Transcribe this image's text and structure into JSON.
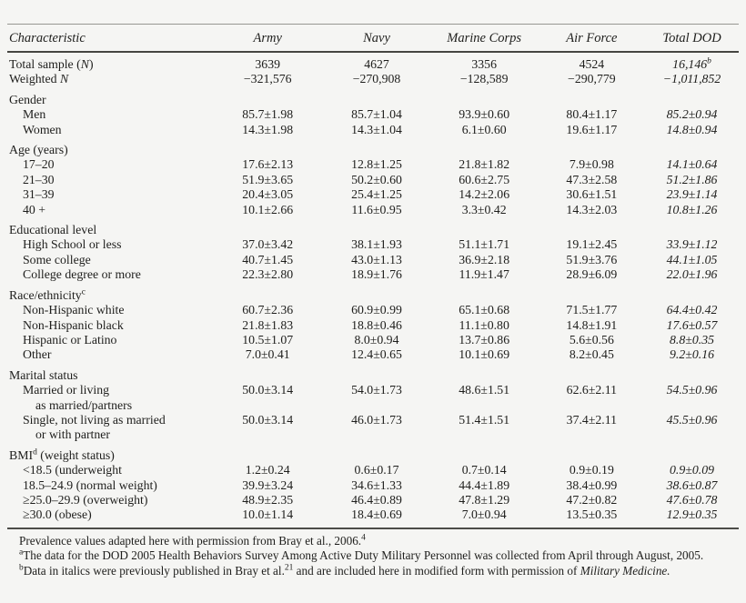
{
  "page": {
    "background": "#f5f5f3",
    "text_color": "#1e1e1c"
  },
  "table": {
    "columns": [
      {
        "key": "characteristic",
        "label": "Characteristic"
      },
      {
        "key": "army",
        "label": "Army"
      },
      {
        "key": "navy",
        "label": "Navy"
      },
      {
        "key": "marine-corps",
        "label": "Marine Corps"
      },
      {
        "key": "air-force",
        "label": "Air Force"
      },
      {
        "key": "total-dod",
        "label": "Total DOD"
      }
    ],
    "rows": [
      {
        "kind": "data",
        "indent": 0,
        "label_parts": [
          {
            "t": "Total sample ("
          },
          {
            "t": "N",
            "italic": true
          },
          {
            "t": ")"
          }
        ],
        "values": [
          "3639",
          "4627",
          "3356",
          "4524",
          "16,146"
        ],
        "last_value_sup": "b"
      },
      {
        "kind": "data",
        "indent": 0,
        "label_parts": [
          {
            "t": "Weighted "
          },
          {
            "t": "N",
            "italic": true
          }
        ],
        "values": [
          "−321,576",
          "−270,908",
          "−128,589",
          "−290,779",
          "−1,011,852"
        ]
      },
      {
        "kind": "section",
        "label_parts": [
          {
            "t": "Gender"
          }
        ]
      },
      {
        "kind": "data",
        "indent": 1,
        "label_parts": [
          {
            "t": "Men"
          }
        ],
        "values": [
          "85.7±1.98",
          "85.7±1.04",
          "93.9±0.60",
          "80.4±1.17",
          "85.2±0.94"
        ]
      },
      {
        "kind": "data",
        "indent": 1,
        "label_parts": [
          {
            "t": "Women"
          }
        ],
        "values": [
          "14.3±1.98",
          "14.3±1.04",
          "6.1±0.60",
          "19.6±1.17",
          "14.8±0.94"
        ]
      },
      {
        "kind": "section",
        "label_parts": [
          {
            "t": "Age (years)"
          }
        ]
      },
      {
        "kind": "data",
        "indent": 1,
        "label_parts": [
          {
            "t": "17–20"
          }
        ],
        "values": [
          "17.6±2.13",
          "12.8±1.25",
          "21.8±1.82",
          "7.9±0.98",
          "14.1±0.64"
        ]
      },
      {
        "kind": "data",
        "indent": 1,
        "label_parts": [
          {
            "t": "21–30"
          }
        ],
        "values": [
          "51.9±3.65",
          "50.2±0.60",
          "60.6±2.75",
          "47.3±2.58",
          "51.2±1.86"
        ]
      },
      {
        "kind": "data",
        "indent": 1,
        "label_parts": [
          {
            "t": "31–39"
          }
        ],
        "values": [
          "20.4±3.05",
          "25.4±1.25",
          "14.2±2.06",
          "30.6±1.51",
          "23.9±1.14"
        ]
      },
      {
        "kind": "data",
        "indent": 1,
        "label_parts": [
          {
            "t": "40 +"
          }
        ],
        "values": [
          "10.1±2.66",
          "11.6±0.95",
          "3.3±0.42",
          "14.3±2.03",
          "10.8±1.26"
        ]
      },
      {
        "kind": "section",
        "label_parts": [
          {
            "t": "Educational level"
          }
        ]
      },
      {
        "kind": "data",
        "indent": 1,
        "label_parts": [
          {
            "t": "High School or less"
          }
        ],
        "values": [
          "37.0±3.42",
          "38.1±1.93",
          "51.1±1.71",
          "19.1±2.45",
          "33.9±1.12"
        ]
      },
      {
        "kind": "data",
        "indent": 1,
        "label_parts": [
          {
            "t": "Some college"
          }
        ],
        "values": [
          "40.7±1.45",
          "43.0±1.13",
          "36.9±2.18",
          "51.9±3.76",
          "44.1±1.05"
        ]
      },
      {
        "kind": "data",
        "indent": 1,
        "label_parts": [
          {
            "t": "College degree or more"
          }
        ],
        "values": [
          "22.3±2.80",
          "18.9±1.76",
          "11.9±1.47",
          "28.9±6.09",
          "22.0±1.96"
        ]
      },
      {
        "kind": "section",
        "label_parts": [
          {
            "t": "Race/ethnicity"
          },
          {
            "t": "c",
            "sup": true
          }
        ]
      },
      {
        "kind": "data",
        "indent": 1,
        "label_parts": [
          {
            "t": "Non-Hispanic white"
          }
        ],
        "values": [
          "60.7±2.36",
          "60.9±0.99",
          "65.1±0.68",
          "71.5±1.77",
          "64.4±0.42"
        ]
      },
      {
        "kind": "data",
        "indent": 1,
        "label_parts": [
          {
            "t": "Non-Hispanic black"
          }
        ],
        "values": [
          "21.8±1.83",
          "18.8±0.46",
          "11.1±0.80",
          "14.8±1.91",
          "17.6±0.57"
        ]
      },
      {
        "kind": "data",
        "indent": 1,
        "label_parts": [
          {
            "t": "Hispanic or Latino"
          }
        ],
        "values": [
          "10.5±1.07",
          "8.0±0.94",
          "13.7±0.86",
          "5.6±0.56",
          "8.8±0.35"
        ]
      },
      {
        "kind": "data",
        "indent": 1,
        "label_parts": [
          {
            "t": "Other"
          }
        ],
        "values": [
          "7.0±0.41",
          "12.4±0.65",
          "10.1±0.69",
          "8.2±0.45",
          "9.2±0.16"
        ]
      },
      {
        "kind": "section",
        "label_parts": [
          {
            "t": "Marital status"
          }
        ]
      },
      {
        "kind": "data",
        "indent": 1,
        "label_parts": [
          {
            "t": "Married or living"
          }
        ],
        "label_line2": "as married/partners",
        "values": [
          "50.0±3.14",
          "54.0±1.73",
          "48.6±1.51",
          "62.6±2.11",
          "54.5±0.96"
        ]
      },
      {
        "kind": "data",
        "indent": 1,
        "label_parts": [
          {
            "t": "Single, not living as married"
          }
        ],
        "label_line2": "or with partner",
        "values": [
          "50.0±3.14",
          "46.0±1.73",
          "51.4±1.51",
          "37.4±2.11",
          "45.5±0.96"
        ]
      },
      {
        "kind": "section",
        "label_parts": [
          {
            "t": "BMI"
          },
          {
            "t": "d",
            "sup": true
          },
          {
            "t": " (weight status)"
          }
        ]
      },
      {
        "kind": "data",
        "indent": 1,
        "label_parts": [
          {
            "t": "<18.5 (underweight"
          }
        ],
        "values": [
          "1.2±0.24",
          "0.6±0.17",
          "0.7±0.14",
          "0.9±0.19",
          "0.9±0.09"
        ]
      },
      {
        "kind": "data",
        "indent": 1,
        "label_parts": [
          {
            "t": "18.5–24.9 (normal weight)"
          }
        ],
        "values": [
          "39.9±3.24",
          "34.6±1.33",
          "44.4±1.89",
          "38.4±0.99",
          "38.6±0.87"
        ]
      },
      {
        "kind": "data",
        "indent": 1,
        "label_parts": [
          {
            "t": "≥25.0–29.9 (overweight)"
          }
        ],
        "values": [
          "48.9±2.35",
          "46.4±0.89",
          "47.8±1.29",
          "47.2±0.82",
          "47.6±0.78"
        ]
      },
      {
        "kind": "data",
        "indent": 1,
        "label_parts": [
          {
            "t": "≥30.0 (obese)"
          }
        ],
        "values": [
          "10.0±1.14",
          "18.4±0.69",
          "7.0±0.94",
          "13.5±0.35",
          "12.9±0.35"
        ]
      }
    ],
    "italic_column_key": "total-dod"
  },
  "footnotes": [
    {
      "parts": [
        {
          "t": "Prevalence values adapted here with permission from Bray et al., 2006."
        },
        {
          "t": "4",
          "sup": true
        }
      ]
    },
    {
      "parts": [
        {
          "t": "a",
          "sup": true
        },
        {
          "t": "The data for the DOD 2005 Health Behaviors Survey Among Active Duty Military Personnel was collected from April through August, 2005."
        }
      ]
    },
    {
      "parts": [
        {
          "t": "b",
          "sup": true
        },
        {
          "t": "Data in italics were previously published in Bray et al."
        },
        {
          "t": "21",
          "sup": true
        },
        {
          "t": " and are included here in modified form with permission of "
        },
        {
          "t": "Military Medicine.",
          "italic": true
        }
      ]
    }
  ]
}
